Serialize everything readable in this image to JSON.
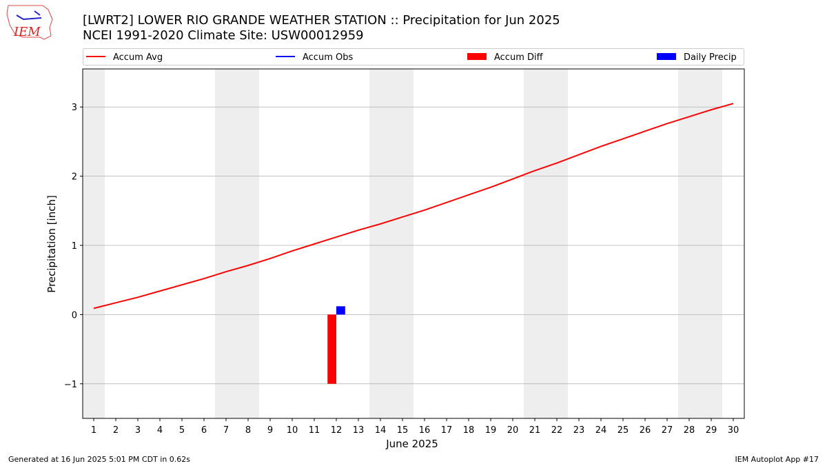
{
  "chart_data": {
    "type": "line",
    "title": "[LWRT2] LOWER RIO GRANDE WEATHER STATION :: Precipitation for Jun 2025",
    "subtitle": "NCEI 1991-2020 Climate Site: USW00012959",
    "xlabel": "June 2025",
    "ylabel": "Precipitation [inch]",
    "x": [
      1,
      2,
      3,
      4,
      5,
      6,
      7,
      8,
      9,
      10,
      11,
      12,
      13,
      14,
      15,
      16,
      17,
      18,
      19,
      20,
      21,
      22,
      23,
      24,
      25,
      26,
      27,
      28,
      29,
      30
    ],
    "xlim": [
      0.5,
      30.5
    ],
    "xticks": [
      1,
      2,
      3,
      4,
      5,
      6,
      7,
      8,
      9,
      10,
      11,
      12,
      13,
      14,
      15,
      16,
      17,
      18,
      19,
      20,
      21,
      22,
      23,
      24,
      25,
      26,
      27,
      28,
      29,
      30
    ],
    "ylim": [
      -1.5,
      3.55
    ],
    "yticks": [
      {
        "value": -1,
        "label": "−1"
      },
      0,
      1,
      2,
      3
    ],
    "grid": "y",
    "series": [
      {
        "name": "Accum Avg",
        "kind": "line",
        "color": "#ff0000",
        "values": [
          0.09,
          0.17,
          0.25,
          0.34,
          0.43,
          0.52,
          0.62,
          0.71,
          0.81,
          0.92,
          1.02,
          1.12,
          1.22,
          1.31,
          1.41,
          1.51,
          1.62,
          1.73,
          1.84,
          1.96,
          2.08,
          2.19,
          2.31,
          2.43,
          2.54,
          2.65,
          2.76,
          2.86,
          2.96,
          3.05
        ]
      },
      {
        "name": "Accum Obs",
        "kind": "line",
        "color": "#0000ff",
        "values": [
          null,
          null,
          null,
          null,
          null,
          null,
          null,
          null,
          null,
          null,
          null,
          null,
          null,
          null,
          null,
          null,
          null,
          null,
          null,
          null,
          null,
          null,
          null,
          null,
          null,
          null,
          null,
          null,
          null,
          null
        ]
      },
      {
        "name": "Accum Diff",
        "kind": "bar",
        "color": "#ff0000",
        "values": [
          null,
          null,
          null,
          null,
          null,
          null,
          null,
          null,
          null,
          null,
          null,
          -1.0,
          null,
          null,
          null,
          null,
          null,
          null,
          null,
          null,
          null,
          null,
          null,
          null,
          null,
          null,
          null,
          null,
          null,
          null
        ]
      },
      {
        "name": "Daily Precip",
        "kind": "bar",
        "color": "#0000ff",
        "values": [
          null,
          null,
          null,
          null,
          null,
          null,
          null,
          null,
          null,
          null,
          null,
          0.12,
          null,
          null,
          null,
          null,
          null,
          null,
          null,
          null,
          null,
          null,
          null,
          null,
          null,
          null,
          null,
          null,
          null,
          null
        ]
      }
    ]
  },
  "logo_text": "IEM",
  "footer_left": "Generated at 16 Jun 2025 5:01 PM CDT in 0.62s",
  "footer_right": "IEM Autoplot App #17"
}
